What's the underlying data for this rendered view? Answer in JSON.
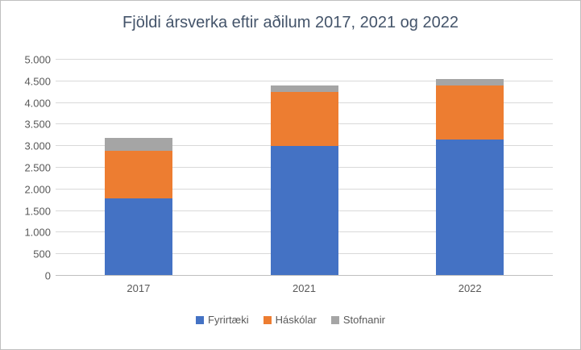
{
  "chart": {
    "title": "Fjöldi ársverka eftir aðilum 2017, 2021 og 2022"
  },
  "chart_data": {
    "type": "bar",
    "stacked": true,
    "title": "Fjöldi ársverka eftir aðilum 2017, 2021 og 2022",
    "xlabel": "",
    "ylabel": "",
    "categories": [
      "2017",
      "2021",
      "2022"
    ],
    "series": [
      {
        "name": "Fyrirtæki",
        "color": "#4472C4",
        "values": [
          1800,
          3000,
          3150
        ]
      },
      {
        "name": "Háskólar",
        "color": "#ED7D31",
        "values": [
          1100,
          1250,
          1250
        ]
      },
      {
        "name": "Stofnanir",
        "color": "#A5A5A5",
        "values": [
          300,
          150,
          150
        ]
      }
    ],
    "totals": [
      3200,
      4400,
      4550
    ],
    "ylim": [
      0,
      5000
    ],
    "ytick_step": 500,
    "ytick_labels": [
      "0",
      "500",
      "1.000",
      "1.500",
      "2.000",
      "2.500",
      "3.000",
      "3.500",
      "4.000",
      "4.500",
      "5.000"
    ],
    "grid": true,
    "legend_position": "bottom"
  }
}
